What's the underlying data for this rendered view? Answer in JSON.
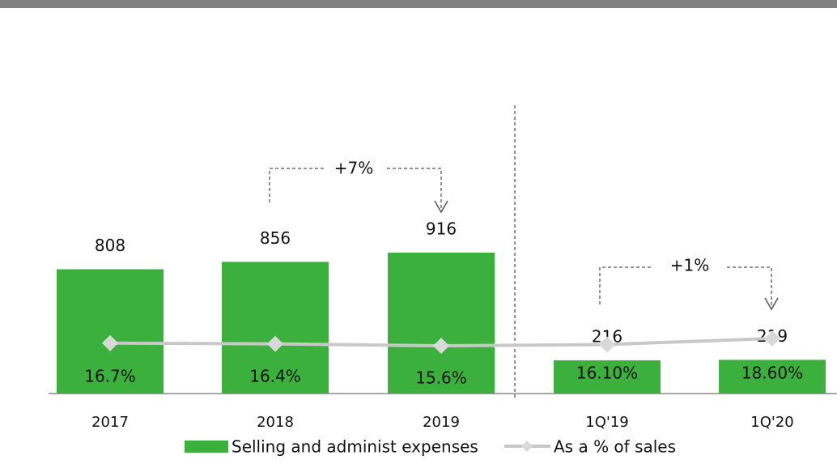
{
  "chart_data": {
    "type": "bar",
    "categories": [
      "2017",
      "2018",
      "2019",
      "1Q'19",
      "1Q'20"
    ],
    "series": [
      {
        "name": "Selling and administ expenses",
        "color": "#3cb03c",
        "values": [
          808,
          856,
          916,
          216,
          219
        ]
      },
      {
        "name": "As a % of sales",
        "type": "line",
        "color": "#c8c8c8",
        "values": [
          16.7,
          16.4,
          15.6,
          16.1,
          18.6
        ],
        "value_labels": [
          "16.7%",
          "16.4%",
          "15.6%",
          "16.10%",
          "18.60%"
        ]
      }
    ],
    "annotations": [
      "+7%",
      "+1%"
    ]
  }
}
